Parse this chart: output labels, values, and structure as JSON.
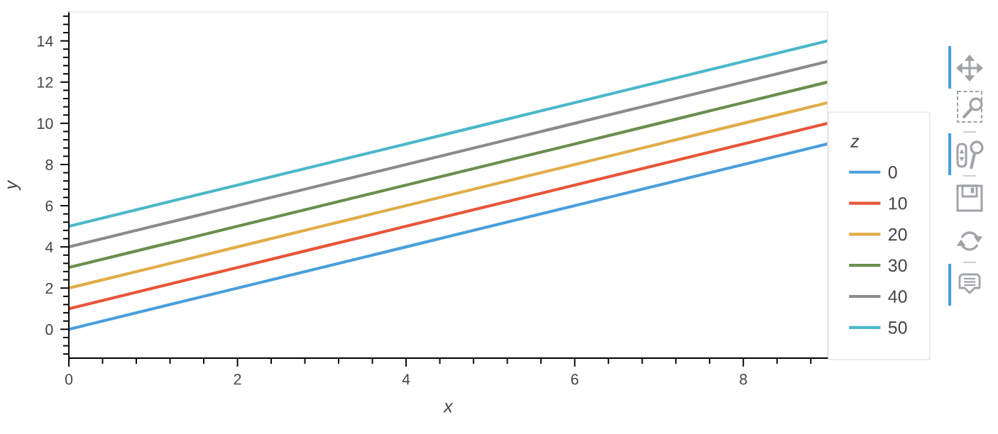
{
  "chart_data": {
    "type": "line",
    "xlabel": "x",
    "ylabel": "y",
    "legend_title": "z",
    "x": [
      0,
      1,
      2,
      3,
      4,
      5,
      6,
      7,
      8,
      9
    ],
    "series": [
      {
        "name": "0",
        "color": "#4a9fdb",
        "values": [
          0,
          1,
          2,
          3,
          4,
          5,
          6,
          7,
          8,
          9
        ]
      },
      {
        "name": "10",
        "color": "#e8553a",
        "values": [
          1,
          2,
          3,
          4,
          5,
          6,
          7,
          8,
          9,
          10
        ]
      },
      {
        "name": "20",
        "color": "#e0ad48",
        "values": [
          2,
          3,
          4,
          5,
          6,
          7,
          8,
          9,
          10,
          11
        ]
      },
      {
        "name": "30",
        "color": "#6b8e4e",
        "values": [
          3,
          4,
          5,
          6,
          7,
          8,
          9,
          10,
          11,
          12
        ]
      },
      {
        "name": "40",
        "color": "#8b8b8b",
        "values": [
          4,
          5,
          6,
          7,
          8,
          9,
          10,
          11,
          12,
          13
        ]
      },
      {
        "name": "50",
        "color": "#4bb8c9",
        "values": [
          5,
          6,
          7,
          8,
          9,
          10,
          11,
          12,
          13,
          14
        ]
      }
    ],
    "xlim": [
      0,
      9
    ],
    "ylim": [
      -1.4,
      15.4
    ],
    "xticks": [
      0,
      2,
      4,
      6,
      8
    ],
    "yticks": [
      0,
      2,
      4,
      6,
      8,
      10,
      12,
      14
    ],
    "grid": false,
    "legend": "right",
    "marker": "none",
    "line_style": "solid"
  }
}
